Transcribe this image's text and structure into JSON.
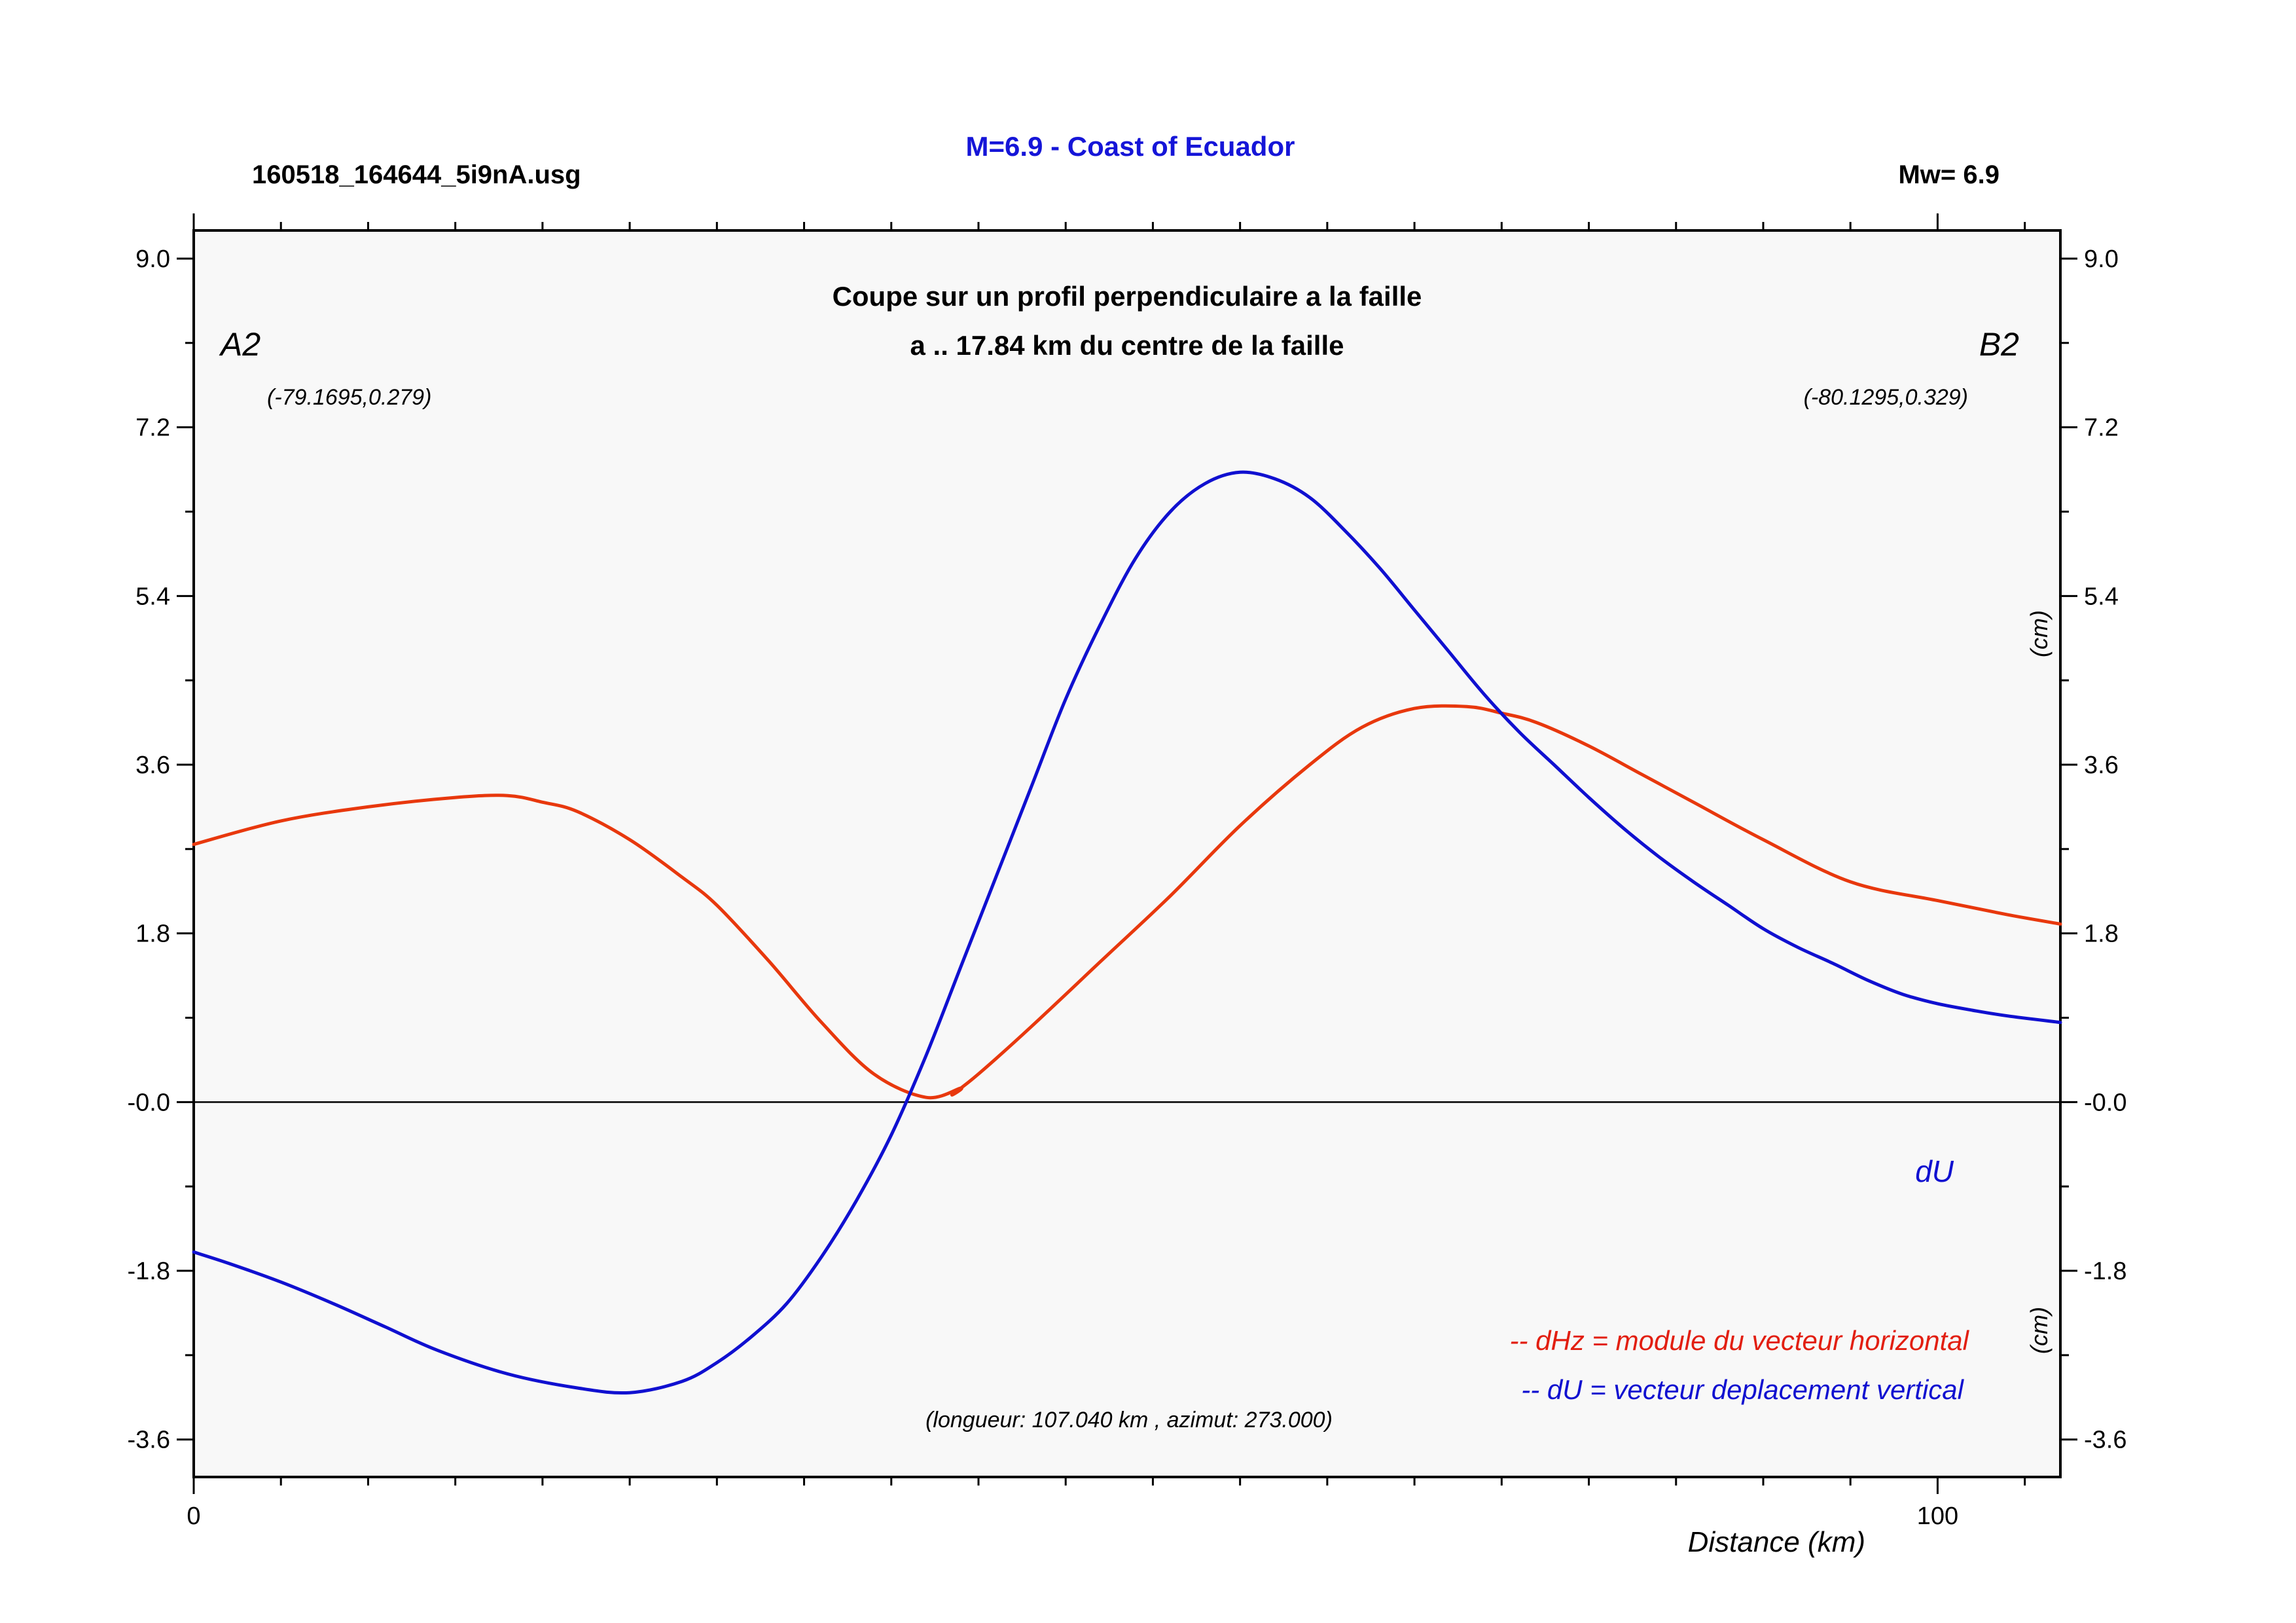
{
  "header": {
    "filename": "160518_164644_5i9nA.usg",
    "title": "M=6.9 - Coast of Ecuador",
    "magnitude": "Mw= 6.9"
  },
  "plot": {
    "subtitle_line1": "Coupe sur un profil perpendiculaire a la faille",
    "subtitle_line2": "a .. 17.84 km du centre de la faille",
    "start_label": "A2",
    "end_label": "B2",
    "start_coords": "(-79.1695,0.279)",
    "end_coords": "(-80.1295,0.329)",
    "unit_upper": "(cm)",
    "unit_lower": "(cm)",
    "du_tag": "dU",
    "legend_dhz": "-- dHz = module du vecteur horizontal",
    "legend_du": "-- dU =  vecteur deplacement vertical",
    "profile_info": "(longueur: 107.040 km , azimut: 273.000)",
    "xlabel": "Distance (km)"
  },
  "colors": {
    "dhz": "#e8380d",
    "du": "#1010d0",
    "title": "#1515d8"
  },
  "chart_data": {
    "type": "line",
    "xlim": [
      0,
      107.04
    ],
    "ylim": [
      -4.0,
      9.3
    ],
    "y_ticks": [
      9.0,
      7.2,
      5.4,
      3.6,
      1.8,
      0.0,
      -1.8,
      -3.6
    ],
    "y_tick_labels": [
      "9.0",
      "7.2",
      "5.4",
      "3.6",
      "1.8",
      "-0.0",
      "-1.8",
      "-3.6"
    ],
    "x_ticks": [
      0,
      100
    ],
    "x_tick_labels": [
      "0",
      "100"
    ],
    "grid": false,
    "series": [
      {
        "name": "dHz",
        "x": [
          0,
          5,
          10,
          15,
          18,
          20,
          22,
          25,
          28,
          30,
          33,
          36,
          39,
          42,
          44,
          43.5,
          45,
          48,
          52,
          56,
          60,
          64,
          67,
          70,
          73,
          75,
          77,
          80,
          83,
          86,
          90,
          95,
          100,
          104,
          107.04
        ],
        "values": [
          2.75,
          3.0,
          3.15,
          3.25,
          3.27,
          3.2,
          3.1,
          2.8,
          2.4,
          2.1,
          1.5,
          0.85,
          0.3,
          0.05,
          0.15,
          0.08,
          0.3,
          0.8,
          1.5,
          2.2,
          2.95,
          3.6,
          4.0,
          4.2,
          4.22,
          4.15,
          4.05,
          3.8,
          3.5,
          3.2,
          2.8,
          2.35,
          2.15,
          2.0,
          1.9
        ]
      },
      {
        "name": "dU",
        "x": [
          0,
          2,
          5,
          8,
          11,
          14,
          18,
          22,
          25,
          28,
          30,
          32,
          34,
          36,
          38,
          40,
          42,
          44,
          46,
          48,
          50,
          52,
          54,
          56,
          58,
          60,
          62,
          64,
          66,
          68,
          70,
          72,
          74,
          76,
          78,
          80,
          82,
          84,
          86,
          88,
          90,
          92,
          94,
          96,
          98,
          100,
          102,
          104,
          107.04
        ],
        "values": [
          -1.6,
          -1.72,
          -1.92,
          -2.15,
          -2.4,
          -2.65,
          -2.9,
          -3.05,
          -3.1,
          -2.98,
          -2.78,
          -2.5,
          -2.15,
          -1.65,
          -1.05,
          -0.35,
          0.5,
          1.45,
          2.4,
          3.35,
          4.3,
          5.1,
          5.8,
          6.3,
          6.6,
          6.72,
          6.65,
          6.45,
          6.1,
          5.7,
          5.25,
          4.8,
          4.35,
          3.95,
          3.6,
          3.25,
          2.92,
          2.62,
          2.35,
          2.1,
          1.85,
          1.65,
          1.48,
          1.3,
          1.15,
          1.05,
          0.98,
          0.92,
          0.85
        ]
      }
    ]
  }
}
